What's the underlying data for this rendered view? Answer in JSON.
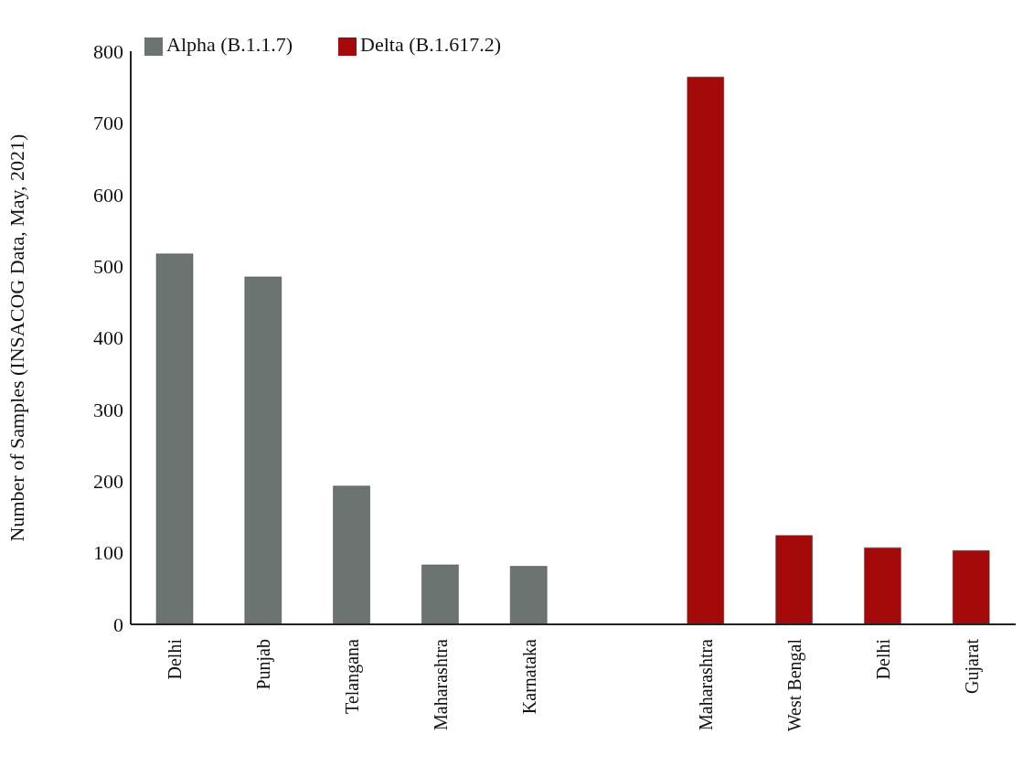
{
  "chart_data": {
    "type": "bar",
    "ylabel": "Number of Samples (INSACOG Data, May, 2021)",
    "categories": [
      "Delhi",
      "Punjab",
      "Telangana",
      "Maharashtra",
      "Karnataka",
      null,
      "Maharashtra",
      "West Bengal",
      "Delhi",
      "Gujarat"
    ],
    "series": [
      {
        "name": "Alpha (B.1.1.7)",
        "color": "#6b7470",
        "values": [
          517,
          485,
          193,
          83,
          81,
          null,
          null,
          null,
          null,
          null
        ]
      },
      {
        "name": "Delta (B.1.617.2)",
        "color": "#a50a0a",
        "values": [
          null,
          null,
          null,
          null,
          null,
          null,
          764,
          124,
          107,
          103
        ]
      }
    ],
    "ylim": [
      0,
      800
    ],
    "yticks": [
      0,
      100,
      200,
      300,
      400,
      500,
      600,
      700,
      800
    ],
    "grid": false,
    "legend": "top left"
  }
}
